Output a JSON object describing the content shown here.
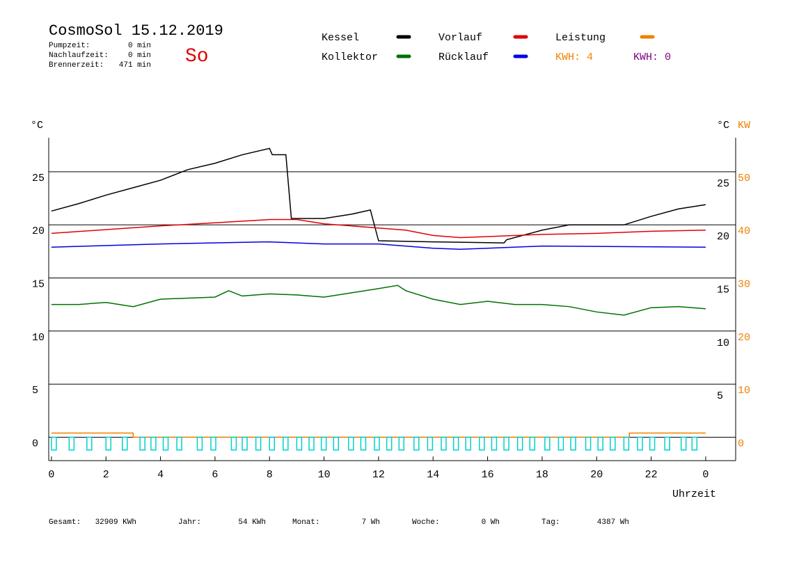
{
  "header": {
    "title": "CosmoSol 15.12.2019",
    "day": "So",
    "stats": [
      {
        "label": "Pumpzeit:",
        "value": "0 min"
      },
      {
        "label": "Nachlaufzeit:",
        "value": "0 min"
      },
      {
        "label": "Brennerzeit:",
        "value": "471 min"
      }
    ],
    "kwh": [
      "KWH: 4",
      "KWH: 0"
    ]
  },
  "footer": [
    {
      "label": "Gesamt:",
      "value": "32909 KWh"
    },
    {
      "label": "Jahr:",
      "value": "54 KWh"
    },
    {
      "label": "Monat:",
      "value": "7 Wh"
    },
    {
      "label": "Woche:",
      "value": "0 Wh"
    },
    {
      "label": "Tag:",
      "value": "4387 Wh"
    }
  ],
  "chart_data": {
    "type": "line",
    "ylabel": "°C",
    "y2label_unit": "°C",
    "y2label": "KW",
    "xlabel": "Uhrzeit",
    "grid": true,
    "xlim": [
      -0.1,
      25.1
    ],
    "xticks": [
      0,
      2,
      4,
      6,
      8,
      10,
      12,
      14,
      16,
      18,
      20,
      22,
      {
        "value": 24,
        "label": "0"
      }
    ],
    "ylim": [
      -2.2,
      28.2
    ],
    "yticks": [
      0,
      5,
      10,
      15,
      20,
      25
    ],
    "y2lim": [
      -4.4,
      56.4
    ],
    "y2ticks": [
      0,
      10,
      20,
      30,
      40,
      50
    ],
    "series": [
      {
        "name": "Kessel",
        "color": "#000000",
        "x": [
          0,
          1,
          2,
          3,
          4,
          5,
          6,
          7,
          8,
          8.1,
          8.6,
          8.8,
          10,
          11,
          11.7,
          12,
          14,
          16.6,
          16.7,
          18,
          19,
          21,
          22,
          23,
          24
        ],
        "values": [
          21.3,
          22.0,
          22.8,
          23.5,
          24.2,
          25.2,
          25.8,
          26.6,
          27.2,
          26.6,
          26.6,
          20.6,
          20.6,
          21.0,
          21.4,
          18.5,
          18.4,
          18.3,
          18.6,
          19.5,
          20.0,
          20.0,
          20.8,
          21.5,
          21.9
        ]
      },
      {
        "name": "Vorlauf",
        "color": "#e00000",
        "x": [
          0,
          4,
          8,
          9,
          10,
          12,
          13,
          14,
          15,
          16,
          18,
          20,
          22,
          24
        ],
        "values": [
          19.2,
          19.9,
          20.5,
          20.5,
          20.1,
          19.7,
          19.5,
          19.0,
          18.8,
          18.9,
          19.1,
          19.2,
          19.4,
          19.5
        ]
      },
      {
        "name": "Leistung",
        "color": "#f08000",
        "axis": "y2",
        "x": [
          0,
          3,
          3,
          21.2,
          21.2,
          24
        ],
        "values": [
          0.8,
          0.8,
          0,
          0,
          0.8,
          0.8
        ]
      },
      {
        "name": "Kollektor",
        "color": "#007000",
        "x": [
          0,
          1,
          2,
          3,
          4,
          5,
          6,
          6.5,
          7,
          8,
          9,
          10,
          11,
          12,
          12.7,
          13,
          14,
          15,
          16,
          17,
          18,
          19,
          20,
          21,
          22,
          23,
          24
        ],
        "values": [
          12.5,
          12.5,
          12.7,
          12.3,
          13.0,
          13.1,
          13.2,
          13.8,
          13.3,
          13.5,
          13.4,
          13.2,
          13.6,
          14.0,
          14.3,
          13.8,
          13.0,
          12.5,
          12.8,
          12.5,
          12.5,
          12.3,
          11.8,
          11.5,
          12.2,
          12.3,
          12.1
        ]
      },
      {
        "name": "Rücklauf",
        "color": "#0000e0",
        "x": [
          0,
          4,
          8,
          10,
          12,
          14,
          15,
          16,
          18,
          24
        ],
        "values": [
          17.9,
          18.2,
          18.4,
          18.2,
          18.2,
          17.8,
          17.7,
          17.8,
          18.0,
          17.9
        ]
      },
      {
        "color": "#00d0d0",
        "style": "pulse",
        "x": [
          0,
          0.65,
          1.3,
          2,
          2.6,
          3.25,
          3.65,
          4.1,
          4.6,
          5.35,
          5.85,
          6.6,
          7.0,
          7.5,
          8.0,
          8.5,
          9.0,
          9.45,
          9.9,
          10.35,
          10.9,
          11.35,
          11.85,
          12.3,
          12.75,
          13.3,
          13.8,
          14.3,
          14.75,
          15.2,
          15.7,
          16.15,
          16.6,
          17.1,
          17.55,
          18.1,
          18.6,
          19.05,
          19.6,
          20.05,
          20.5,
          21,
          21.5,
          21.95,
          22.5,
          23.1,
          23.5
        ],
        "values": [
          -1.2,
          -1.2,
          -1.2,
          -1.2,
          -1.2,
          -1.2,
          -1.2,
          -1.2,
          -1.2,
          -1.2,
          -1.2,
          -1.2,
          -1.2,
          -1.2,
          -1.2,
          -1.2,
          -1.2,
          -1.2,
          -1.2,
          -1.2,
          -1.2,
          -1.2,
          -1.2,
          -1.2,
          -1.2,
          -1.2,
          -1.2,
          -1.2,
          -1.2,
          -1.2,
          -1.2,
          -1.2,
          -1.2,
          -1.2,
          -1.2,
          -1.2,
          -1.2,
          -1.2,
          -1.2,
          -1.2,
          -1.2,
          -1.2,
          -1.2,
          -1.2,
          -1.2,
          -1.2,
          -1.2
        ]
      }
    ]
  }
}
